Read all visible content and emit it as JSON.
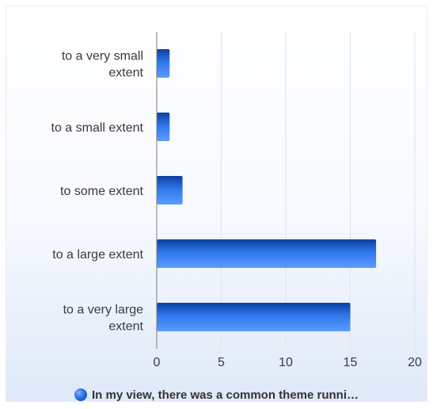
{
  "chart_data": {
    "type": "bar",
    "orientation": "horizontal",
    "categories": [
      "to a very small extent",
      "to a small extent",
      "to some extent",
      "to a large extent",
      "to a very large extent"
    ],
    "category_label_lines": [
      [
        "to a very small",
        "extent"
      ],
      [
        "to a small extent"
      ],
      [
        "to some extent"
      ],
      [
        "to a large extent"
      ],
      [
        "to a very large",
        "extent"
      ]
    ],
    "series": [
      {
        "name": "In my view, there was a common theme runni…",
        "values": [
          1,
          1,
          2,
          17,
          15
        ]
      }
    ],
    "xlim": [
      0,
      20
    ],
    "xticks": [
      "0",
      "5",
      "10",
      "15",
      "20"
    ],
    "grid": true,
    "legend_position": "bottom",
    "colors": {
      "bar_dark": "#0a3fa0",
      "bar_mid": "#2f78ea",
      "bar_light": "#5b9cff",
      "axis": "#7a7a7a",
      "grid": "#dde3ec"
    }
  }
}
